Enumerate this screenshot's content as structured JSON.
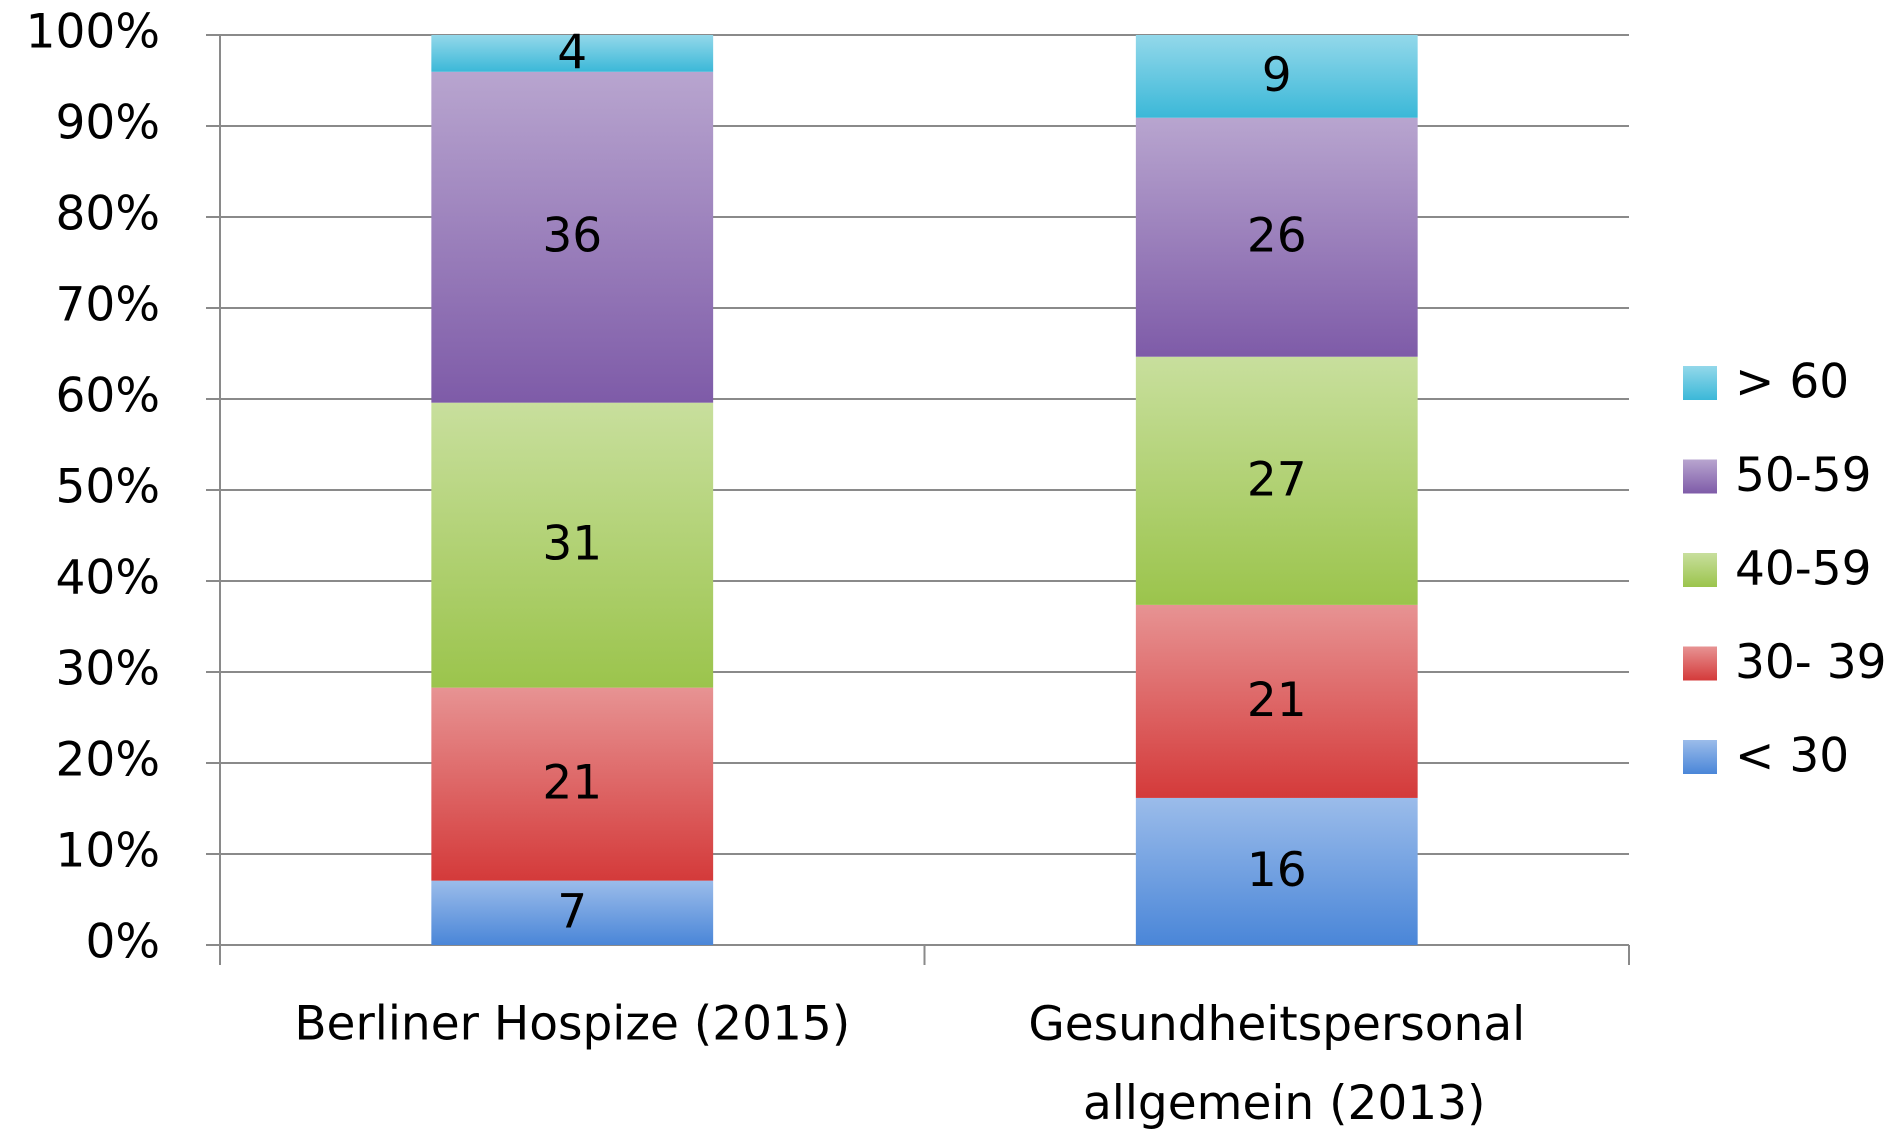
{
  "chart_data": {
    "type": "bar",
    "stacked": "percent",
    "categories": [
      "Berliner Hospize (2015)",
      "Gesundheitspersonal allgemein (2013)"
    ],
    "series": [
      {
        "name": "< 30",
        "color": "#4a86d8",
        "values": [
          7,
          16
        ]
      },
      {
        "name": "30- 39",
        "color": "#d43a3a",
        "values": [
          21,
          21
        ]
      },
      {
        "name": "40-59",
        "color": "#9bc44c",
        "values": [
          31,
          27
        ]
      },
      {
        "name": "50-59",
        "color": "#7e5ba8",
        "values": [
          36,
          26
        ]
      },
      {
        "name": "> 60",
        "color": "#3bb8d8",
        "values": [
          4,
          9
        ]
      }
    ],
    "ylim": [
      0,
      100
    ],
    "yticks": [
      {
        "value": 0,
        "label": "0%"
      },
      {
        "value": 10,
        "label": "10%"
      },
      {
        "value": 20,
        "label": "20%"
      },
      {
        "value": 30,
        "label": "30%"
      },
      {
        "value": 40,
        "label": "40%"
      },
      {
        "value": 50,
        "label": "50%"
      },
      {
        "value": 60,
        "label": "60%"
      },
      {
        "value": 70,
        "label": "70%"
      },
      {
        "value": 80,
        "label": "80%"
      },
      {
        "value": 90,
        "label": "90%"
      },
      {
        "value": 100,
        "label": "100%"
      }
    ],
    "grid": true,
    "legend": "right"
  }
}
